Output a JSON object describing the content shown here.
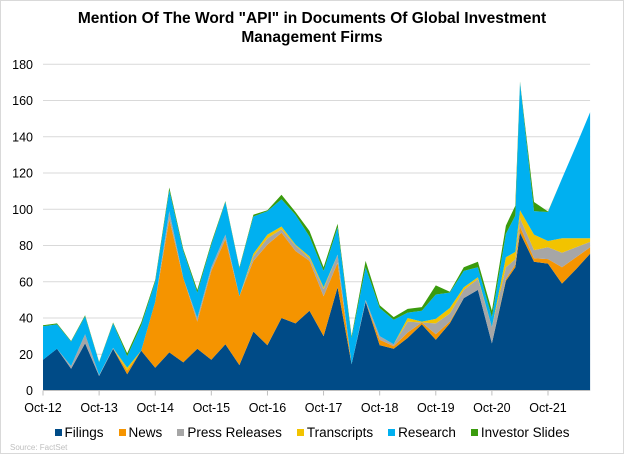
{
  "chart_data": {
    "type": "area",
    "stacked": true,
    "title": "Mention Of The Word \"API\" in Documents Of Global Investment Management Firms",
    "title_lines": [
      "Mention Of The Word \"API\" in Documents Of Global Investment",
      "Management Firms"
    ],
    "xlabel": "",
    "ylabel": "",
    "ylim": [
      0,
      180
    ],
    "yticks": [
      0,
      20,
      40,
      60,
      80,
      100,
      120,
      140,
      160,
      180
    ],
    "xtick_labels": [
      "Oct-12",
      "Oct-13",
      "Oct-14",
      "Oct-15",
      "Oct-16",
      "Oct-17",
      "Oct-18",
      "Oct-19",
      "Oct-20",
      "Oct-21"
    ],
    "grid": "horizontal",
    "legend_position": "bottom",
    "source": "Source:  FactSet",
    "x": [
      "Oct-12",
      "Jan-13",
      "Apr-13",
      "Jul-13",
      "Oct-13",
      "Jan-14",
      "Apr-14",
      "Jul-14",
      "Oct-14",
      "Jan-15",
      "Apr-15",
      "Jul-15",
      "Oct-15",
      "Jan-16",
      "Apr-16",
      "Jul-16",
      "Oct-16",
      "Jan-17",
      "Apr-17",
      "Jul-17",
      "Oct-17",
      "Jan-18",
      "Apr-18",
      "Jul-18",
      "Oct-18",
      "Jan-19",
      "Apr-19",
      "Jul-19",
      "Oct-19",
      "Jan-20",
      "Apr-20",
      "Jul-20",
      "Oct-20",
      "Jan-21",
      "Mar-21",
      "Apr-21",
      "Jul-21",
      "Oct-21",
      "Jan-22",
      "Apr-22",
      "Jul-22"
    ],
    "series": [
      {
        "name": "Filings",
        "color": "#004B87",
        "values": [
          17,
          23,
          12,
          26,
          8,
          23,
          9,
          22,
          12.5,
          21,
          15.5,
          23,
          17,
          25.5,
          14,
          32.5,
          25,
          40,
          37,
          44,
          30,
          57,
          14.5,
          49,
          25,
          23,
          29,
          36.5,
          28,
          37,
          51,
          55.5,
          26,
          60.5,
          68,
          87,
          71,
          70,
          59,
          67,
          75.5
        ]
      },
      {
        "name": "News",
        "color": "#F59400",
        "values": [
          0,
          0,
          0,
          0,
          0,
          0,
          2,
          0,
          36.5,
          73.5,
          46.5,
          15,
          49,
          58,
          38,
          39,
          55.5,
          47,
          40,
          27.5,
          22,
          13.5,
          0,
          0,
          3,
          1.5,
          3,
          1,
          3,
          1,
          0,
          0,
          0,
          1,
          1.5,
          3.5,
          2,
          2.5,
          9,
          6.5,
          3.5
        ]
      },
      {
        "name": "Press Releases",
        "color": "#A6A6A6",
        "values": [
          0,
          0,
          1.5,
          5,
          0.5,
          0.5,
          0,
          0,
          0,
          4.5,
          0,
          2,
          2,
          2.5,
          0,
          2.5,
          3.5,
          2,
          3,
          1.5,
          4,
          4.5,
          0,
          1,
          2,
          1,
          6,
          0,
          6,
          4.5,
          4.5,
          6,
          9,
          6.5,
          3,
          4.5,
          4.5,
          6.5,
          8,
          5.5,
          3
        ]
      },
      {
        "name": "Transcripts",
        "color": "#F2C300",
        "values": [
          0,
          0,
          0,
          0,
          0,
          0,
          1.5,
          0,
          0,
          0,
          0,
          0,
          0,
          0,
          0,
          1.5,
          2,
          1.5,
          0.5,
          1,
          1,
          0,
          0,
          0,
          0,
          0,
          2,
          0.5,
          2.5,
          3,
          1.5,
          1,
          0,
          5.5,
          4,
          4.5,
          8.5,
          3.5,
          8,
          5,
          2
        ]
      },
      {
        "name": "Research",
        "color": "#00B0F0",
        "values": [
          18.5,
          13.5,
          13.5,
          10,
          7,
          13.5,
          6.5,
          14,
          11,
          11.5,
          15,
          14,
          12.5,
          18,
          15.5,
          20.5,
          13,
          15,
          16.5,
          11,
          9,
          15,
          14.5,
          18,
          15.5,
          13.5,
          3,
          6,
          13.5,
          8.5,
          9,
          5.5,
          5.5,
          13,
          20,
          70.5,
          13,
          16,
          33,
          51,
          69.5
        ]
      },
      {
        "name": "Investor Slides",
        "color": "#3A9B0D",
        "values": [
          0.5,
          0.5,
          0.3,
          0.5,
          0.3,
          0.5,
          1.5,
          1.5,
          1,
          1.5,
          1,
          1.5,
          1,
          0.5,
          0.5,
          1,
          0.5,
          2.5,
          1.5,
          3,
          2,
          2,
          1,
          3.5,
          1.5,
          1.5,
          2,
          2,
          5,
          0.5,
          2,
          3,
          3.5,
          4.5,
          5.5,
          0.5,
          5,
          0.3,
          0,
          0,
          0
        ]
      }
    ]
  }
}
